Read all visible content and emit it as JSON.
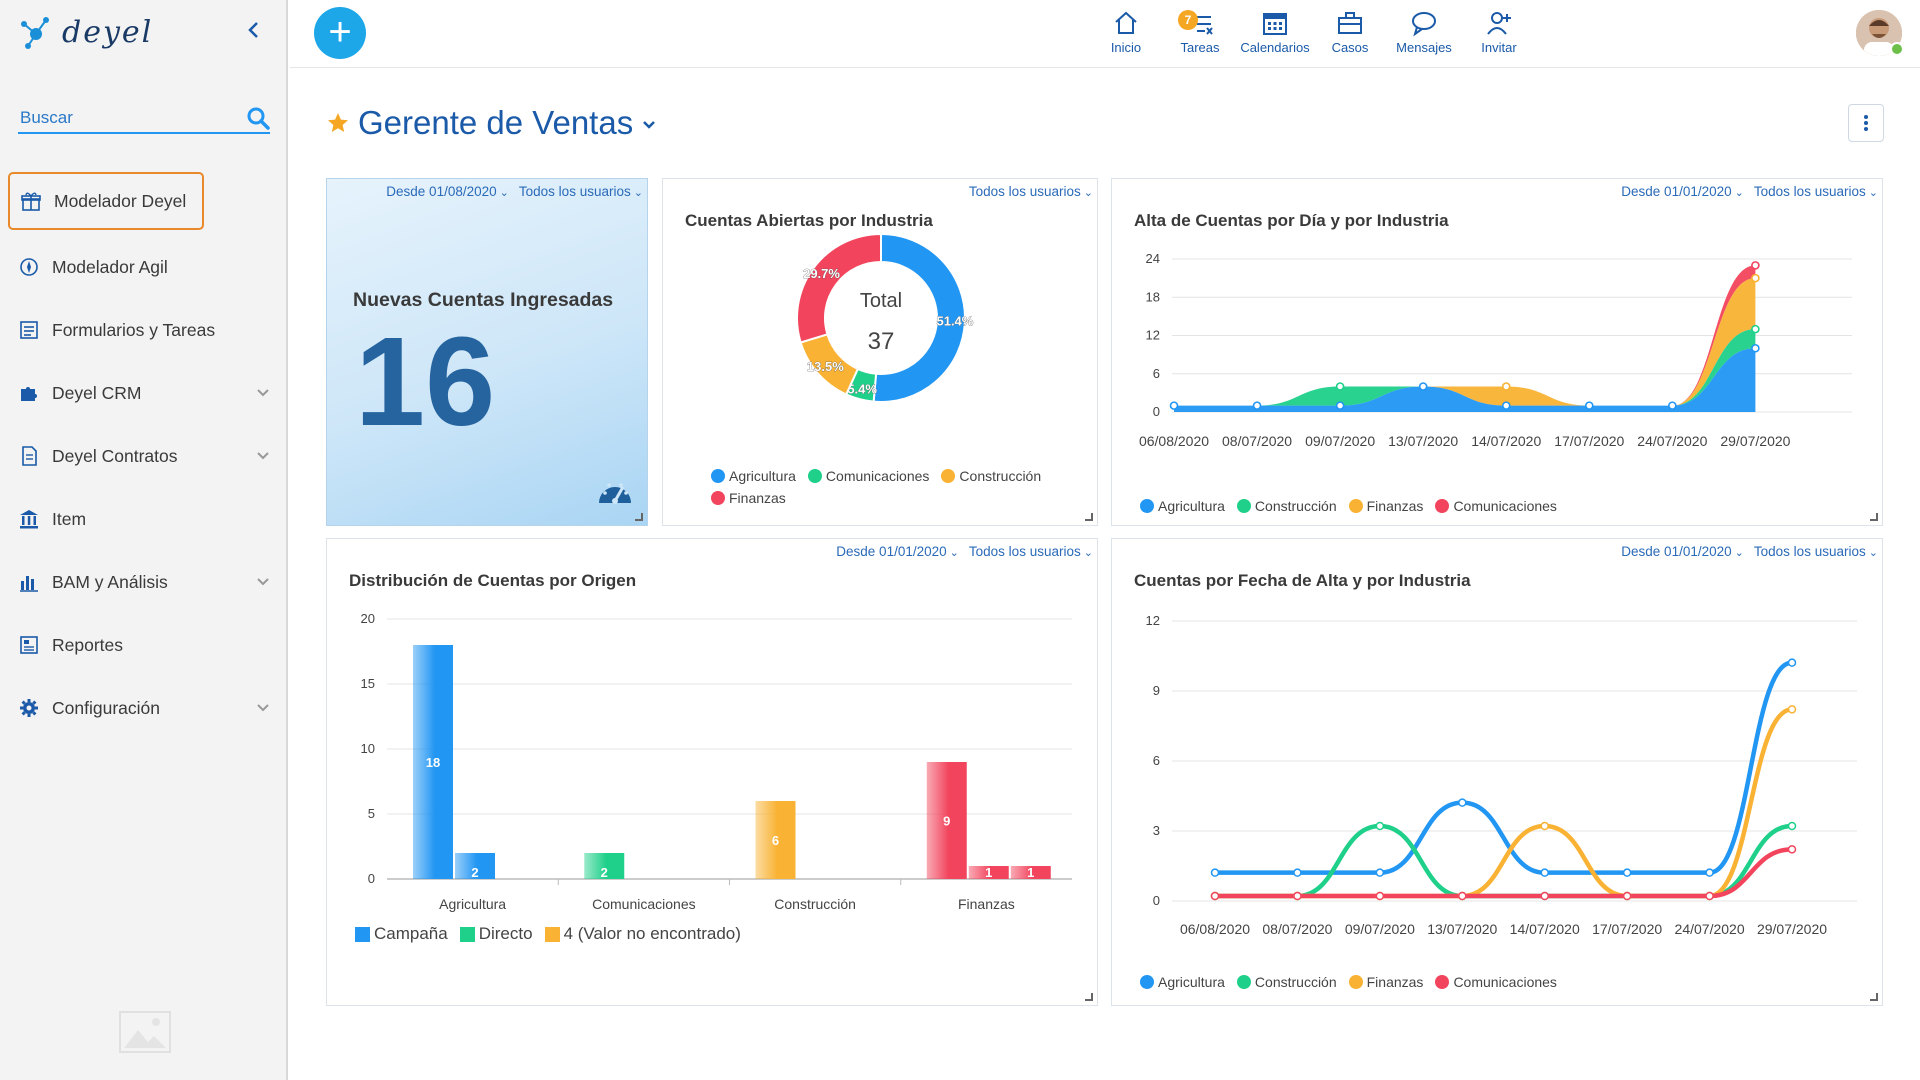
{
  "app": {
    "logo_text": "deyel",
    "search": {
      "placeholder": "Buscar"
    },
    "menu": [
      {
        "label": "Modelador Deyel",
        "icon": "gift-box-icon",
        "active": true,
        "has_chevron": false
      },
      {
        "label": "Modelador Agil",
        "icon": "compass-icon",
        "active": false,
        "has_chevron": false
      },
      {
        "label": "Formularios y Tareas",
        "icon": "form-list-icon",
        "active": false,
        "has_chevron": false
      },
      {
        "label": "Deyel CRM",
        "icon": "puzzle-icon",
        "active": false,
        "has_chevron": true
      },
      {
        "label": "Deyel Contratos",
        "icon": "document-icon",
        "active": false,
        "has_chevron": true
      },
      {
        "label": "Item",
        "icon": "bank-icon",
        "active": false,
        "has_chevron": false
      },
      {
        "label": "BAM y Análisis",
        "icon": "bar-chart-icon",
        "active": false,
        "has_chevron": true
      },
      {
        "label": "Reportes",
        "icon": "report-icon",
        "active": false,
        "has_chevron": false
      },
      {
        "label": "Configuración",
        "icon": "gear-icon",
        "active": false,
        "has_chevron": true
      }
    ]
  },
  "topbar": {
    "nav": [
      {
        "label": "Inicio",
        "icon": "home-icon"
      },
      {
        "label": "Tareas",
        "icon": "tasks-icon",
        "badge": "7"
      },
      {
        "label": "Calendarios",
        "icon": "calendar-icon"
      },
      {
        "label": "Casos",
        "icon": "briefcase-icon"
      },
      {
        "label": "Mensajes",
        "icon": "chat-icon"
      },
      {
        "label": "Invitar",
        "icon": "add-user-icon"
      }
    ]
  },
  "page": {
    "title": "Gerente de Ventas"
  },
  "widgets": {
    "kpi": {
      "filters": [
        "Desde 01/08/2020",
        "Todos los usuarios"
      ],
      "label": "Nuevas Cuentas Ingresadas",
      "value": "16"
    },
    "donut": {
      "filters": [
        "Todos los usuarios"
      ],
      "title": "Cuentas Abiertas por Industria",
      "center_label": "Total",
      "center_value": "37"
    },
    "altadia": {
      "filters": [
        "Desde 01/01/2020",
        "Todos los usuarios"
      ],
      "title": "Alta de Cuentas por Día y por Industria"
    },
    "origen": {
      "filters": [
        "Desde 01/01/2020",
        "Todos los usuarios"
      ],
      "title": "Distribución de Cuentas por Origen"
    },
    "fecha": {
      "filters": [
        "Desde 01/01/2020",
        "Todos los usuarios"
      ],
      "title": "Cuentas por Fecha de Alta y por Industria"
    }
  },
  "colors": {
    "agricultura": "#2196f3",
    "comunicaciones": "#1fd08a",
    "construccion": "#f9b233",
    "finanzas": "#f2445c",
    "accent": "#1a5aa8"
  },
  "chart_data": [
    {
      "id": "donut",
      "type": "pie",
      "title": "Cuentas Abiertas por Industria",
      "labels": [
        "Agricultura",
        "Comunicaciones",
        "Construcción",
        "Finanzas"
      ],
      "values": [
        51.4,
        5.4,
        13.5,
        29.7
      ],
      "value_labels": [
        "51.4%",
        "5.4%",
        "13.5%",
        "29.7%"
      ],
      "colors": [
        "#2196f3",
        "#1fd08a",
        "#f9b233",
        "#f2445c"
      ],
      "legend_order": [
        "Agricultura",
        "Comunicaciones",
        "Construcción",
        "Finanzas"
      ],
      "legend_colors": [
        "#2196f3",
        "#1fd08a",
        "#f9b233",
        "#f2445c"
      ]
    },
    {
      "id": "altadia",
      "type": "area",
      "stacked": true,
      "title": "Alta de Cuentas por Día y por Industria",
      "x": [
        "06/08/2020",
        "08/07/2020",
        "09/07/2020",
        "13/07/2020",
        "14/07/2020",
        "17/07/2020",
        "24/07/2020",
        "29/07/2020"
      ],
      "ylim": [
        0,
        24
      ],
      "yticks": [
        0,
        6,
        12,
        18,
        24
      ],
      "series": [
        {
          "name": "Agricultura",
          "color": "#2196f3",
          "values": [
            1,
            1,
            1,
            4,
            1,
            1,
            1,
            10
          ]
        },
        {
          "name": "Construcción",
          "color": "#1fd08a",
          "values": [
            0,
            0,
            3,
            0,
            0,
            0,
            0,
            3
          ]
        },
        {
          "name": "Finanzas",
          "color": "#f9b233",
          "values": [
            0,
            0,
            0,
            0,
            3,
            0,
            0,
            8
          ]
        },
        {
          "name": "Comunicaciones",
          "color": "#f2445c",
          "values": [
            0,
            0,
            0,
            0,
            0,
            0,
            0,
            2
          ]
        }
      ]
    },
    {
      "id": "origen",
      "type": "bar",
      "title": "Distribución de Cuentas por Origen",
      "categories": [
        "Agricultura",
        "Comunicaciones",
        "Construcción",
        "Finanzas"
      ],
      "ylim": [
        0,
        20
      ],
      "yticks": [
        0,
        5,
        10,
        15,
        20
      ],
      "series": [
        {
          "name": "Campaña",
          "color": "#2196f3",
          "values": [
            18,
            null,
            null,
            null
          ]
        },
        {
          "name": "Directo",
          "color": "#1fd08a",
          "values": [
            null,
            null,
            null,
            null
          ]
        },
        {
          "name": "4 (Valor no encontrado)",
          "color": "#f9b233",
          "values": [
            null,
            null,
            null,
            null
          ]
        }
      ],
      "bars": [
        {
          "category": "Agricultura",
          "value": 18,
          "color": "#2196f3",
          "label": "18"
        },
        {
          "category": "Agricultura",
          "value": 2,
          "color": "#2196f3",
          "label": "2"
        },
        {
          "category": "Comunicaciones",
          "value": 2,
          "color": "#1fd08a",
          "label": "2"
        },
        {
          "category": "Construcción",
          "value": 6,
          "color": "#f9b233",
          "label": "6"
        },
        {
          "category": "Finanzas",
          "value": 9,
          "color": "#f2445c",
          "label": "9"
        },
        {
          "category": "Finanzas",
          "value": 1,
          "color": "#f2445c",
          "label": "1"
        },
        {
          "category": "Finanzas",
          "value": 1,
          "color": "#f2445c",
          "label": "1"
        }
      ]
    },
    {
      "id": "fecha",
      "type": "line",
      "title": "Cuentas por Fecha de Alta y por Industria",
      "x": [
        "06/08/2020",
        "08/07/2020",
        "09/07/2020",
        "13/07/2020",
        "14/07/2020",
        "17/07/2020",
        "24/07/2020",
        "29/07/2020"
      ],
      "ylim": [
        0,
        12
      ],
      "yticks": [
        0,
        3,
        6,
        9,
        12
      ],
      "series": [
        {
          "name": "Agricultura",
          "color": "#2196f3",
          "values": [
            1,
            1,
            1,
            4,
            1,
            1,
            1,
            10
          ]
        },
        {
          "name": "Construcción",
          "color": "#1fd08a",
          "values": [
            0,
            0,
            3,
            0,
            0,
            0,
            0,
            3
          ]
        },
        {
          "name": "Finanzas",
          "color": "#f9b233",
          "values": [
            0,
            0,
            0,
            0,
            3,
            0,
            0,
            8
          ]
        },
        {
          "name": "Comunicaciones",
          "color": "#f2445c",
          "values": [
            0,
            0,
            0,
            0,
            0,
            0,
            0,
            2
          ]
        }
      ]
    }
  ]
}
